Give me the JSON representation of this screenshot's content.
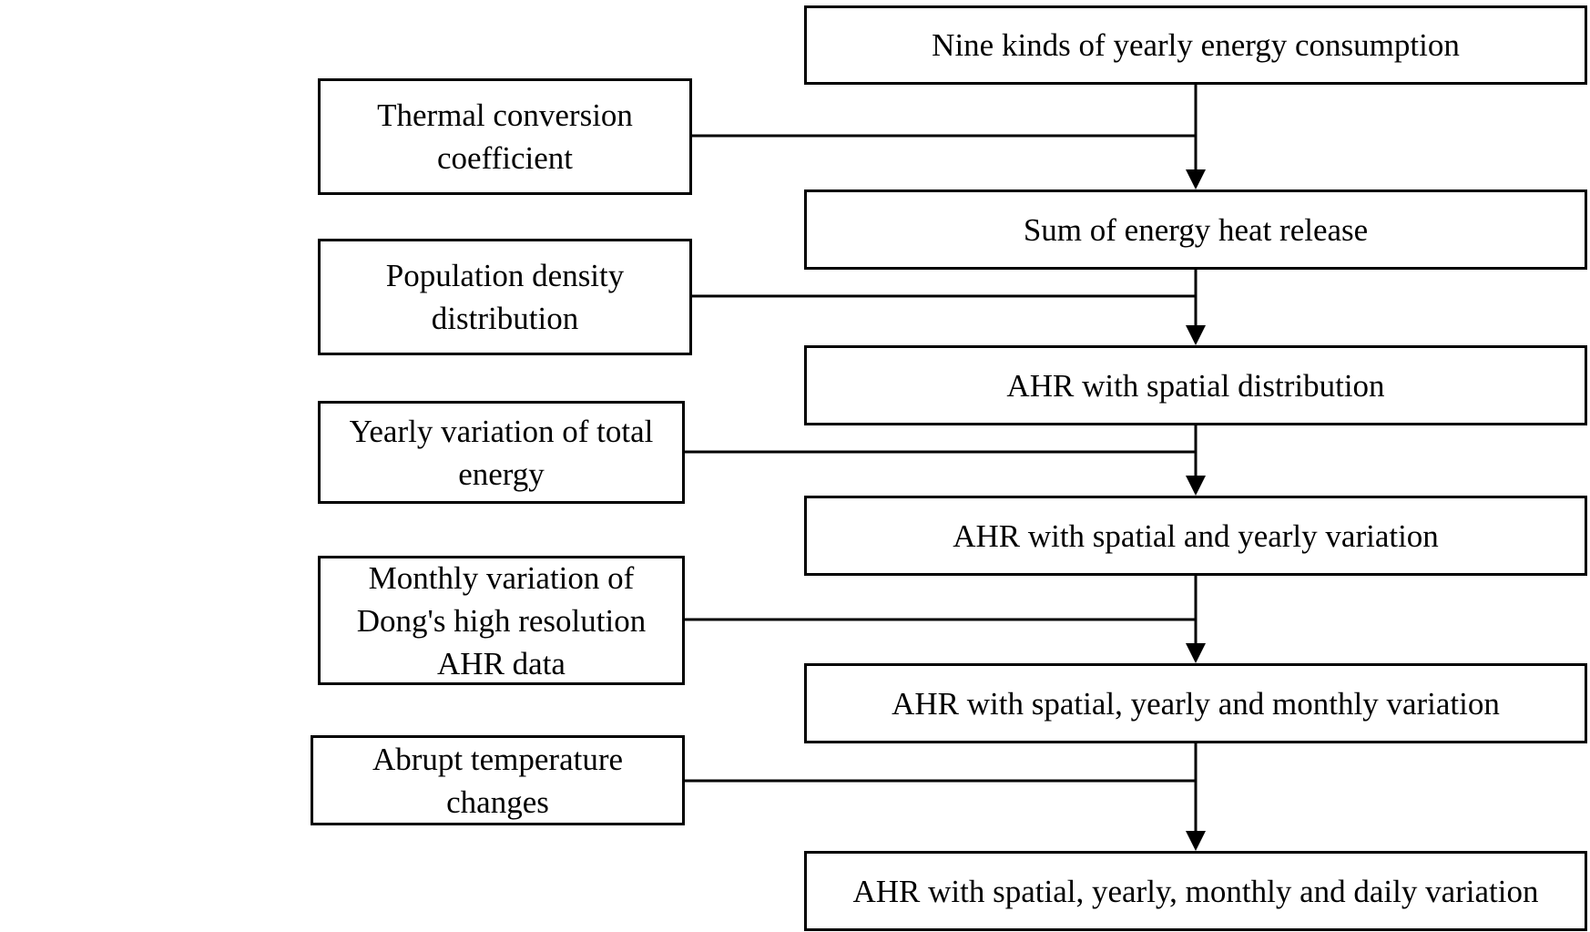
{
  "diagram": {
    "main_steps": [
      "Nine kinds of yearly energy consumption",
      "Sum of energy heat release",
      "AHR with spatial distribution",
      "AHR with spatial and yearly variation",
      "AHR with spatial, yearly and monthly variation",
      "AHR with spatial, yearly, monthly and daily variation"
    ],
    "inputs": [
      {
        "lines": [
          "Thermal conversion",
          "coefficient"
        ]
      },
      {
        "lines": [
          "Population density",
          "distribution"
        ]
      },
      {
        "lines": [
          "Yearly variation of total",
          "energy"
        ]
      },
      {
        "lines": [
          "Monthly variation of",
          "Dong's high resolution",
          "AHR data"
        ]
      },
      {
        "lines": [
          "Abrupt temperature",
          "changes"
        ]
      }
    ]
  }
}
